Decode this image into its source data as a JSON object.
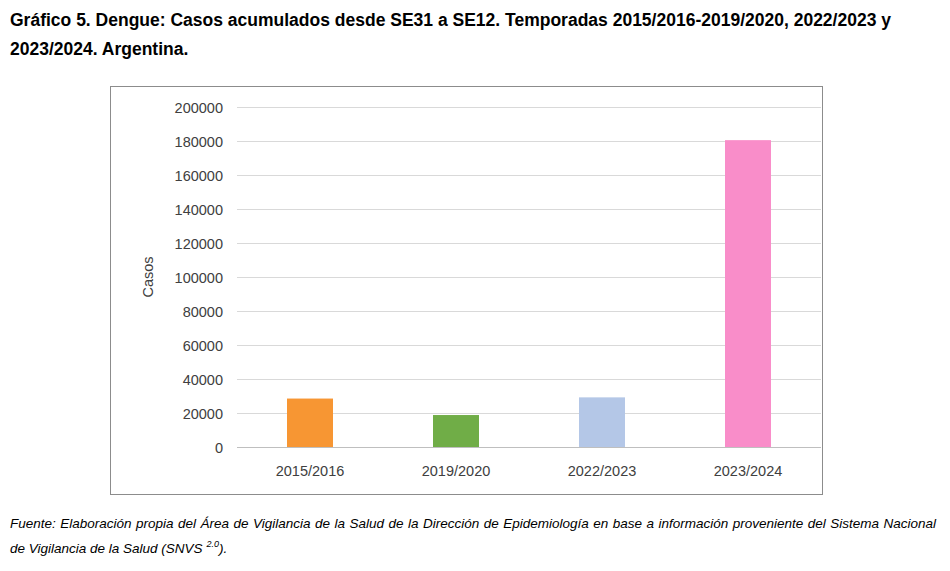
{
  "chart_data": {
    "type": "bar",
    "title": "Gráfico 5. Dengue: Casos acumulados desde SE31 a SE12. Temporadas 2015/2016-2019/2020, 2022/2023 y 2023/2024. Argentina.",
    "y_label": "Casos",
    "categories": [
      "2015/2016",
      "2019/2020",
      "2022/2023",
      "2023/2024"
    ],
    "values": [
      28500,
      18800,
      29200,
      180500
    ],
    "colors": [
      "#f79633",
      "#70ad47",
      "#b4c7e7",
      "#f98dc9"
    ],
    "ylim": [
      0,
      200000
    ],
    "yticks": [
      0,
      20000,
      40000,
      60000,
      80000,
      100000,
      120000,
      140000,
      160000,
      180000,
      200000
    ],
    "grid": true,
    "source": {
      "text": "Fuente: Elaboración propia del Área de Vigilancia de la Salud de la Dirección de Epidemiología en base a información proveniente del Sistema Nacional de Vigilancia de la Salud (SNVS ",
      "superscript": "2.0",
      "end": ")."
    }
  }
}
